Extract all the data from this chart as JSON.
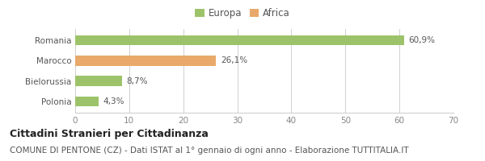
{
  "categories": [
    "Romania",
    "Marocco",
    "Bielorussia",
    "Polonia"
  ],
  "values": [
    60.9,
    26.1,
    8.7,
    4.3
  ],
  "labels": [
    "60,9%",
    "26,1%",
    "8,7%",
    "4,3%"
  ],
  "colors": [
    "#9dc36a",
    "#e8a96a",
    "#9dc36a",
    "#9dc36a"
  ],
  "legend_items": [
    {
      "label": "Europa",
      "color": "#9dc36a"
    },
    {
      "label": "Africa",
      "color": "#e8a96a"
    }
  ],
  "xlim": [
    0,
    70
  ],
  "xticks": [
    0,
    10,
    20,
    30,
    40,
    50,
    60,
    70
  ],
  "title_bold": "Cittadini Stranieri per Cittadinanza",
  "subtitle": "COMUNE DI PENTONE (CZ) - Dati ISTAT al 1° gennaio di ogni anno - Elaborazione TUTTITALIA.IT",
  "bg_color": "#ffffff",
  "grid_color": "#d0d0d0",
  "bar_height": 0.5,
  "title_fontsize": 9,
  "subtitle_fontsize": 7.5,
  "label_fontsize": 7.5,
  "tick_fontsize": 7.5,
  "legend_fontsize": 8.5,
  "ytick_fontsize": 7.5
}
